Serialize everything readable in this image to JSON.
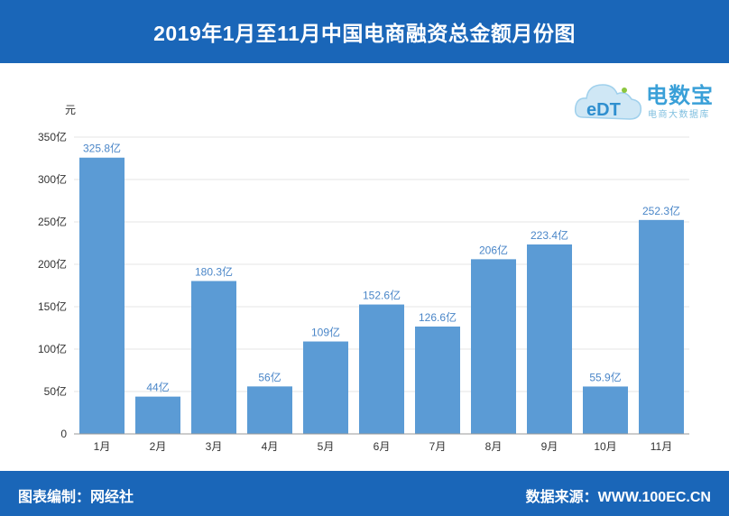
{
  "title": "2019年1月至11月中国电商融资总金额月份图",
  "logo": {
    "brand": "电数宝",
    "sub": "电商大数据库",
    "mark": "eDT"
  },
  "footer": {
    "left": "图表编制：网经社",
    "right": "数据来源：WWW.100EC.CN"
  },
  "colors": {
    "header": "#1a66b8",
    "bar": "#5b9bd5",
    "label": "#4a86c8"
  },
  "chart_data": {
    "type": "bar",
    "title": "2019年1月至11月中国电商融资总金额月份图",
    "ylabel": "元",
    "categories": [
      "1月",
      "2月",
      "3月",
      "4月",
      "5月",
      "6月",
      "7月",
      "8月",
      "9月",
      "10月",
      "11月"
    ],
    "values": [
      325.8,
      44,
      180.3,
      56,
      109,
      152.6,
      126.6,
      206,
      223.4,
      55.9,
      252.3
    ],
    "data_labels": [
      "325.8亿",
      "44亿",
      "180.3亿",
      "56亿",
      "109亿",
      "152.6亿",
      "126.6亿",
      "206亿",
      "223.4亿",
      "55.9亿",
      "252.3亿"
    ],
    "ylim": [
      0,
      350
    ],
    "yticks": [
      0,
      50,
      100,
      150,
      200,
      250,
      300,
      350
    ],
    "ytick_labels": [
      "0",
      "50亿",
      "100亿",
      "150亿",
      "200亿",
      "250亿",
      "300亿",
      "350亿"
    ],
    "grid": true,
    "legend": "none"
  }
}
